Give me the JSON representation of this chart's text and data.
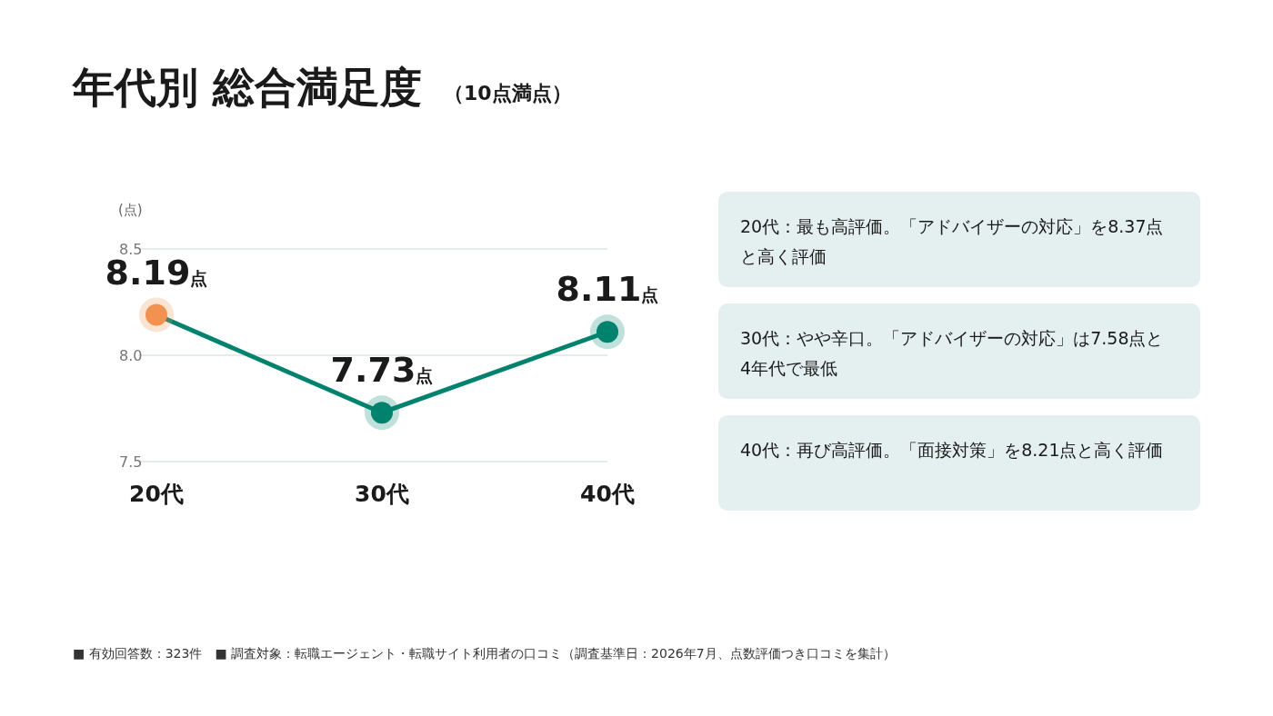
{
  "chart_data": {
    "type": "line",
    "title": "年代別 総合満足度",
    "subtitle": "（10点満点）",
    "ylabel": "(点)",
    "categories": [
      "20代",
      "30代",
      "40代"
    ],
    "series": [
      {
        "color": "#00826f",
        "colors": [
          "#f39250",
          "#00826f",
          "#00826f"
        ],
        "values": [
          8.19,
          7.73,
          8.11
        ],
        "value_labels": [
          "8.19点",
          "7.73点",
          "8.11点"
        ]
      }
    ],
    "ylim": [
      7.5,
      8.5
    ],
    "yticks": [
      7.5,
      {
        "value": 8,
        "label": "8.0"
      },
      8.5
    ],
    "grid": "y",
    "marker": "circle",
    "line_style": "solid",
    "annotations": [
      "20代：最も高評価。「アドバイザーの対応」を8.37点と高く評価",
      "30代：やや辛口。「アドバイザーの対応」は7.58点と4年代で最低",
      "40代：再び高評価。「面接対策」を8.21点と高く評価",
      "■ 有効回答数：323件　■ 調査対象：転職エージェント・転職サイト利用者の口コミ（調査基準日：2026年7月、点数評価つき口コミを集計）"
    ]
  }
}
